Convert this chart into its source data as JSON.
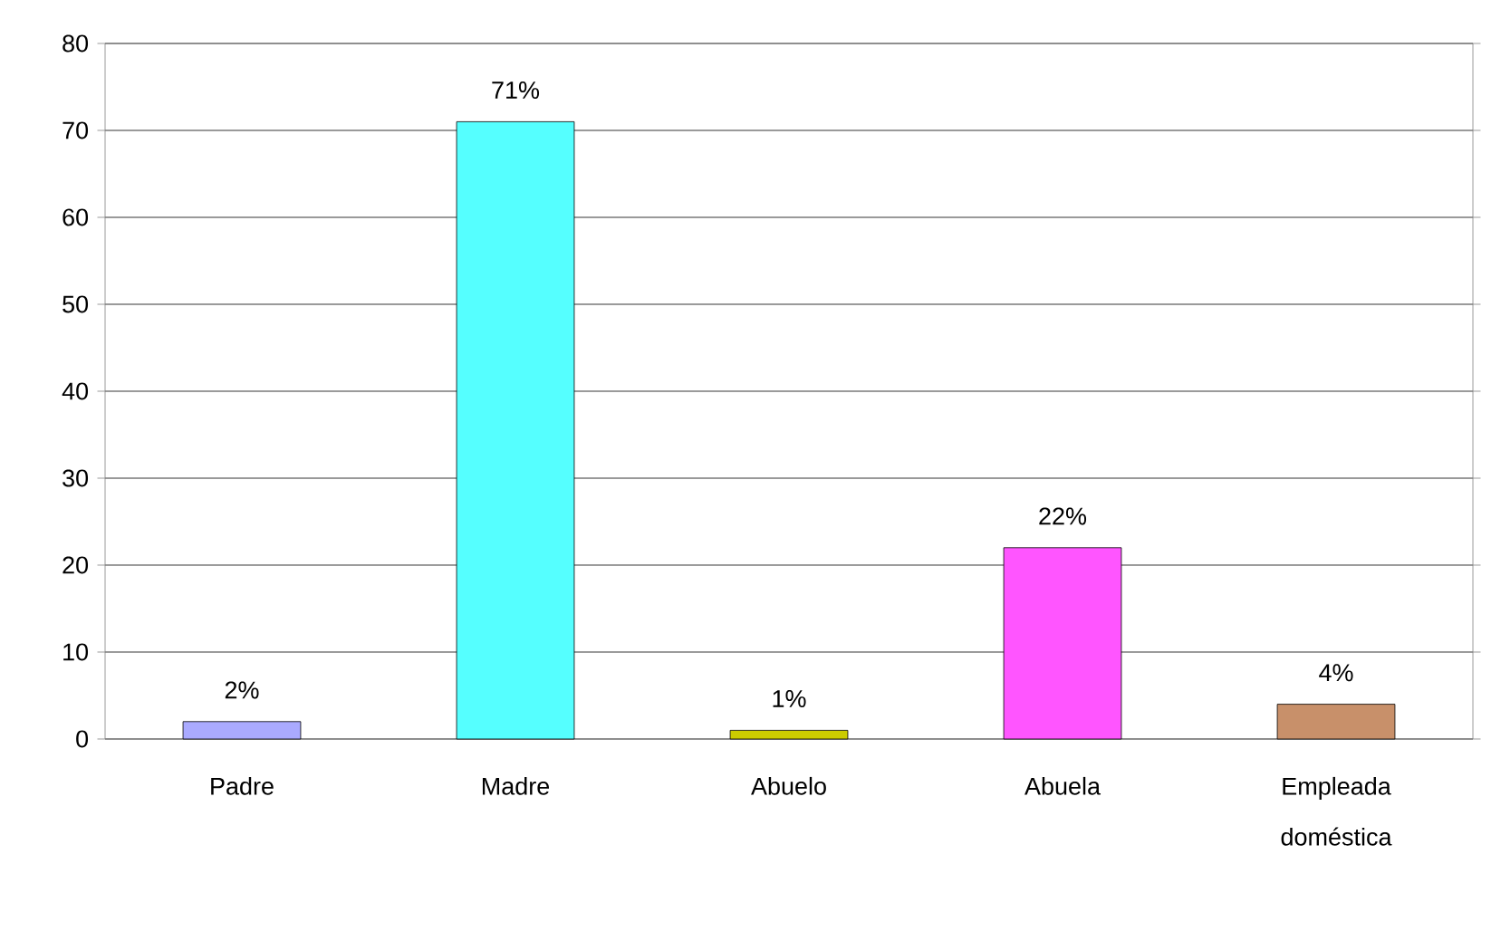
{
  "chart_data": {
    "type": "bar",
    "categories": [
      "Padre",
      "Madre",
      "Abuelo",
      "Abuela",
      "Empleada doméstica"
    ],
    "values": [
      2,
      71,
      1,
      22,
      4
    ],
    "value_labels": [
      "2%",
      "71%",
      "1%",
      "22%",
      "4%"
    ],
    "colors": [
      "#aaaaff",
      "#55ffff",
      "#cccc00",
      "#ff55ff",
      "#c8906a"
    ],
    "ylim": [
      0,
      80
    ],
    "yticks": [
      0,
      10,
      20,
      30,
      40,
      50,
      60,
      70,
      80
    ],
    "grid": "y"
  }
}
